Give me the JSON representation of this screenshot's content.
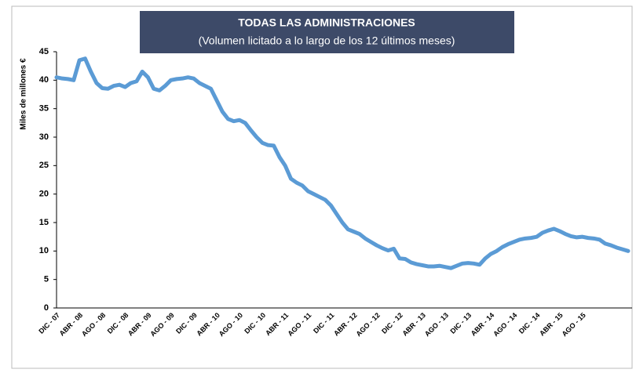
{
  "chart_data": {
    "type": "line",
    "title": "TODAS LAS ADMINISTRACIONES",
    "subtitle": "(Volumen licitado a lo largo de los 12 últimos meses)",
    "y_label": "Miles de millones €",
    "categories": [
      "DIC - 07",
      null,
      null,
      null,
      "ABR - 08",
      null,
      null,
      null,
      "AGO - 08",
      null,
      null,
      null,
      "DIC - 08",
      null,
      null,
      null,
      "ABR - 09",
      null,
      null,
      null,
      "AGO - 09",
      null,
      null,
      null,
      "DIC - 09",
      null,
      null,
      null,
      "ABR - 10",
      null,
      null,
      null,
      "AGO - 10",
      null,
      null,
      null,
      "DIC - 10",
      null,
      null,
      null,
      "ABR - 11",
      null,
      null,
      null,
      "AGO - 11",
      null,
      null,
      null,
      "DIC - 11",
      null,
      null,
      null,
      "ABR - 12",
      null,
      null,
      null,
      "AGO - 12",
      null,
      null,
      null,
      "DIC - 12",
      null,
      null,
      null,
      "ABR - 13",
      null,
      null,
      null,
      "AGO - 13",
      null,
      null,
      null,
      "DIC - 13",
      null,
      null,
      null,
      "ABR - 14",
      null,
      null,
      null,
      "AGO - 14",
      null,
      null,
      null,
      "DIC - 14",
      null,
      null,
      null,
      "ABR - 15",
      null,
      null,
      null,
      "AGO - 15",
      null,
      null,
      null,
      null,
      null,
      null,
      null,
      null
    ],
    "series": [
      {
        "name": "Volumen licitado",
        "color": "#5b9bd5",
        "values": [
          40.5,
          40.3,
          40.2,
          40.0,
          43.5,
          43.8,
          41.5,
          39.5,
          38.6,
          38.5,
          39,
          39.2,
          38.8,
          39.5,
          39.8,
          41.5,
          40.5,
          38.5,
          38.2,
          39,
          40,
          40.2,
          40.3,
          40.5,
          40.3,
          39.5,
          39,
          38.5,
          36.5,
          34.5,
          33.2,
          32.8,
          33,
          32.5,
          31.2,
          30,
          29,
          28.6,
          28.5,
          26.5,
          25,
          22.7,
          22,
          21.5,
          20.5,
          20,
          19.5,
          19,
          18,
          16.5,
          15,
          13.8,
          13.4,
          13,
          12.2,
          11.6,
          11,
          10.5,
          10.1,
          10.4,
          8.7,
          8.6,
          8,
          7.7,
          7.5,
          7.3,
          7.3,
          7.4,
          7.2,
          7,
          7.4,
          7.8,
          7.9,
          7.8,
          7.6,
          8.7,
          9.5,
          10,
          10.7,
          11.2,
          11.6,
          12,
          12.2,
          12.3,
          12.5,
          13.2,
          13.6,
          13.9,
          13.5,
          13,
          12.6,
          12.4,
          12.5,
          12.3,
          12.2,
          12,
          11.3,
          11,
          10.6,
          10.3,
          10
        ]
      }
    ],
    "ylim": [
      0,
      45
    ],
    "yticks": [
      0,
      5,
      10,
      15,
      20,
      25,
      30,
      35,
      40,
      45
    ],
    "grid": false
  }
}
